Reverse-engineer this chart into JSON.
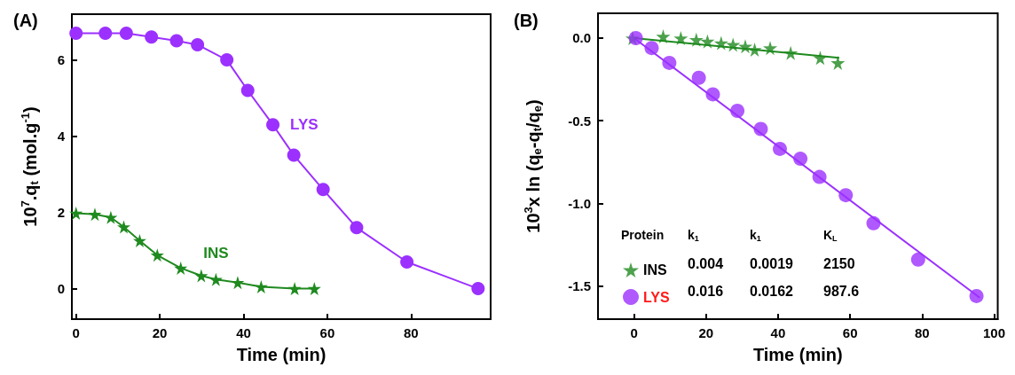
{
  "chart_data": [
    {
      "type": "line",
      "title": "(A)",
      "xlabel": "Time (min)",
      "ylabel": "10$^{7}$.q$_{t}$ (mol.g$^{-1}$)",
      "xlim": [
        -1,
        99
      ],
      "xticks": [
        0,
        20,
        40,
        60,
        80
      ],
      "ylim": [
        -0.8,
        7.2
      ],
      "yticks": [
        0,
        2,
        4,
        6
      ],
      "grid": false,
      "legend": false,
      "series": [
        {
          "name": "LYS",
          "color": "#9b30ff",
          "marker": "circle",
          "x": [
            0,
            7,
            12,
            18,
            24,
            29,
            36,
            41,
            47,
            52,
            59,
            67,
            79,
            96
          ],
          "values": [
            6.7,
            6.7,
            6.7,
            6.6,
            6.5,
            6.4,
            6.0,
            5.2,
            4.3,
            3.5,
            2.6,
            1.6,
            0.7,
            0
          ]
        },
        {
          "name": "INS",
          "color": "#1f8a1f",
          "marker": "star",
          "x": [
            0,
            4.5,
            8.3,
            11.4,
            15.2,
            19.4,
            25,
            29.9,
            33.4,
            38.6,
            44.2,
            52.2,
            56.9
          ],
          "values": [
            1.98,
            1.95,
            1.87,
            1.62,
            1.26,
            0.88,
            0.54,
            0.34,
            0.24,
            0.16,
            0.05,
            0,
            0
          ]
        }
      ]
    },
    {
      "type": "scatter",
      "title": "(B)",
      "xlabel": "Time (min)",
      "ylabel": "10$^{3}$x ln (q$_{e}$-q$_{t}$/q$_{e}$)",
      "xlim": [
        -10,
        101
      ],
      "xticks": [
        0,
        20,
        40,
        60,
        80,
        100
      ],
      "ylim": [
        -1.7,
        0.15
      ],
      "yticks": [
        {
          "value": 0,
          "label": "0.0"
        },
        {
          "value": -0.5,
          "label": "-0.5"
        },
        {
          "value": -1,
          "label": "-1.0"
        },
        {
          "value": -1.5,
          "label": "-1.5"
        }
      ],
      "grid": false,
      "legend": "bottom left",
      "annotations": [
        "Protein",
        "k$_{1}$",
        "k$_{1}$",
        "K$_{L}$",
        "0.004",
        "0.0019",
        "2150",
        "0.016",
        "0.0162",
        "987.6"
      ],
      "series": [
        {
          "name": "INS",
          "color": "#1f8a1f",
          "marker": "star",
          "x": [
            -0.4,
            8.1,
            13,
            17.3,
            20.4,
            24.2,
            27.5,
            30.9,
            33.5,
            37.8,
            43.5,
            51.7,
            56.6
          ],
          "values": [
            0,
            0.01,
            0,
            -0.01,
            -0.02,
            -0.03,
            -0.04,
            -0.05,
            -0.07,
            -0.06,
            -0.09,
            -0.12,
            -0.15
          ]
        },
        {
          "name": "LYS",
          "color": "#9b30ff",
          "marker": "circle",
          "x": [
            0.5,
            4.9,
            9.8,
            18,
            21.9,
            28.7,
            35.2,
            40.5,
            46.2,
            51.5,
            58.8,
            66.5,
            78.9,
            95.1
          ],
          "values": [
            0,
            -0.06,
            -0.15,
            -0.24,
            -0.34,
            -0.44,
            -0.55,
            -0.67,
            -0.73,
            -0.84,
            -0.95,
            -1.12,
            -1.34,
            -1.56
          ]
        },
        {
          "type": "line",
          "color": "#1f8a1f",
          "marker": "none",
          "x": [
            0,
            57
          ],
          "values": [
            0,
            -0.12
          ]
        },
        {
          "type": "line",
          "color": "#9b30ff",
          "marker": "none",
          "x": [
            0,
            96
          ],
          "values": [
            0,
            -1.57
          ]
        }
      ]
    }
  ]
}
